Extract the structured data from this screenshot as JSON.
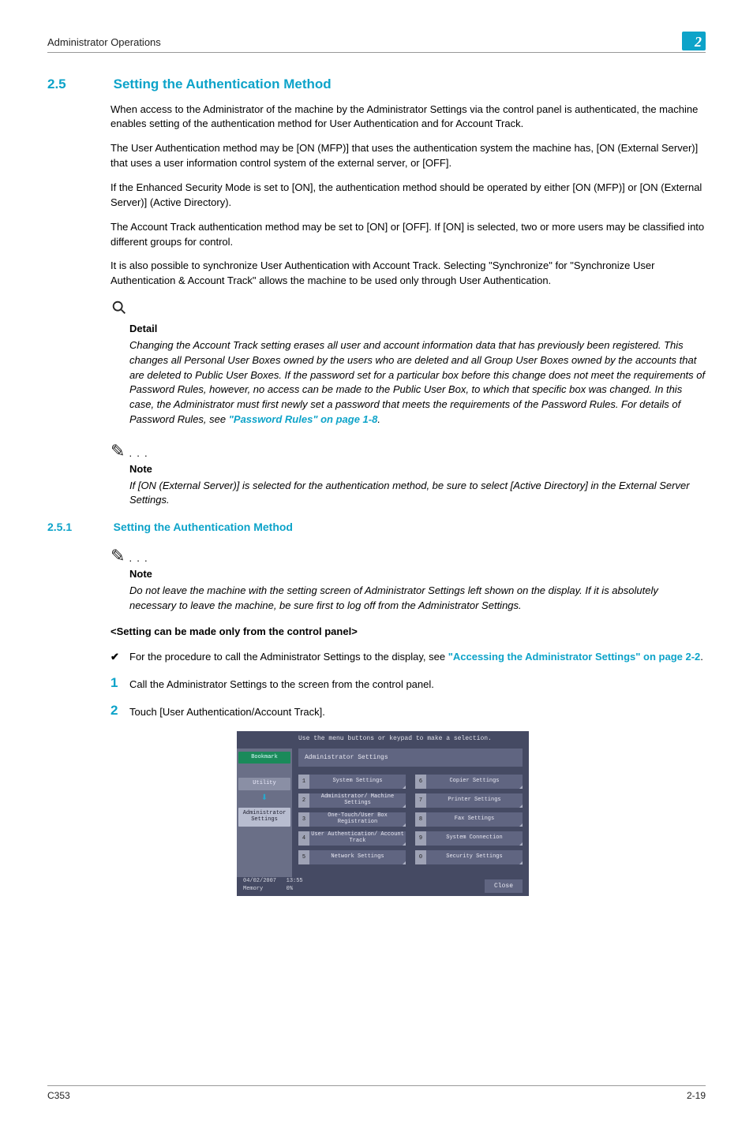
{
  "header": {
    "breadcrumb": "Administrator Operations",
    "chapter": "2"
  },
  "section": {
    "number": "2.5",
    "title": "Setting the Authentication Method"
  },
  "paragraphs": {
    "p1": "When access to the Administrator of the machine by the Administrator Settings via the control panel is authenticated, the machine enables setting of the authentication method for User Authentication and for Account Track.",
    "p2": "The User Authentication method may be [ON (MFP)] that uses the authentication system the machine has, [ON (External Server)] that uses a user information control system of the external server, or [OFF].",
    "p3": "If the Enhanced Security Mode is set to [ON], the authentication method should be operated by either [ON (MFP)] or [ON (External Server)] (Active Directory).",
    "p4": "The Account Track authentication method may be set to [ON] or [OFF]. If [ON] is selected, two or more users may be classified into different groups for control.",
    "p5": "It is also possible to synchronize User Authentication with Account Track. Selecting \"Synchronize\" for \"Synchronize User Authentication & Account Track\" allows the machine to be used only through User Authentication."
  },
  "detail": {
    "label": "Detail",
    "body_a": "Changing the Account Track setting erases all user and account information data that has previously been registered. This changes all Personal User Boxes owned by the users who are deleted and all Group User Boxes owned by the accounts that are deleted to Public User Boxes. If the password set for a particular box before this change does not meet the requirements of Password Rules, however, no access can be made to the Public User Box, to which that specific box was changed. In this case, the Administrator must first newly set a password that meets the requirements of the Password Rules. For details of Password Rules, see ",
    "link": "\"Password Rules\" on page 1-8",
    "body_b": "."
  },
  "note1": {
    "label": "Note",
    "body": "If [ON (External Server)] is selected for the authentication method, be sure to select [Active Directory] in the External Server Settings."
  },
  "subsection": {
    "number": "2.5.1",
    "title": "Setting the Authentication Method"
  },
  "note2": {
    "label": "Note",
    "body": "Do not leave the machine with the setting screen of Administrator Settings left shown on the display. If it is absolutely necessary to leave the machine, be sure first to log off from the Administrator Settings."
  },
  "subheading": "<Setting can be made only from the control panel>",
  "bullet": {
    "text_a": "For the procedure to call the Administrator Settings to the display, see ",
    "link": "\"Accessing the Administrator Settings\" on page 2-2",
    "text_b": "."
  },
  "steps": {
    "s1": {
      "num": "1",
      "text": "Call the Administrator Settings to the screen from the control panel."
    },
    "s2": {
      "num": "2",
      "text": "Touch [User Authentication/Account Track]."
    }
  },
  "panel": {
    "instruction": "Use the menu buttons or keypad to make a selection.",
    "title": "Administrator Settings",
    "side": {
      "bookmark": "Bookmark",
      "utility": "Utility",
      "admin": "Administrator Settings"
    },
    "menuLeft": [
      {
        "n": "1",
        "label": "System Settings"
      },
      {
        "n": "2",
        "label": "Administrator/\nMachine Settings"
      },
      {
        "n": "3",
        "label": "One-Touch/User Box\nRegistration"
      },
      {
        "n": "4",
        "label": "User Authentication/\nAccount Track"
      },
      {
        "n": "5",
        "label": "Network Settings"
      }
    ],
    "menuRight": [
      {
        "n": "6",
        "label": "Copier Settings"
      },
      {
        "n": "7",
        "label": "Printer Settings"
      },
      {
        "n": "8",
        "label": "Fax Settings"
      },
      {
        "n": "9",
        "label": "System Connection"
      },
      {
        "n": "0",
        "label": "Security Settings"
      }
    ],
    "footer": {
      "date": "04/02/2007",
      "time": "13:55",
      "mem_label": "Memory",
      "mem_val": "0%",
      "close": "Close"
    }
  },
  "footer": {
    "left": "C353",
    "right": "2-19"
  },
  "colors": {
    "accent": "#0da3c9",
    "panel_bg": "#454a63",
    "panel_side": "#6a6f87",
    "panel_btn": "#606581"
  }
}
